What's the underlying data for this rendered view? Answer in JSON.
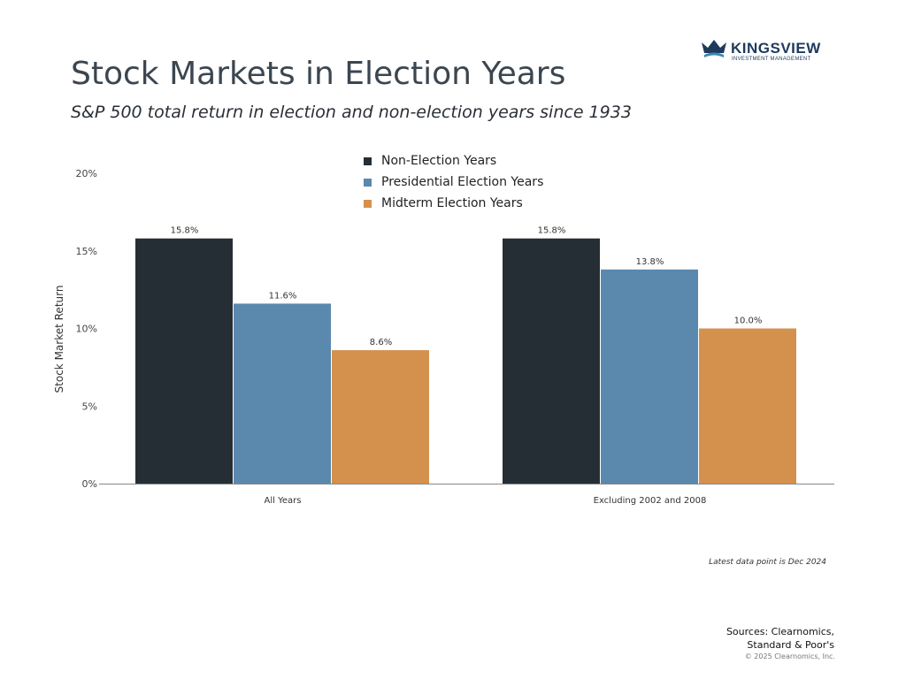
{
  "brand": {
    "name": "KINGSVIEW",
    "tagline": "INVESTMENT MANAGEMENT"
  },
  "header": {
    "title": "Stock Markets in Election Years",
    "subtitle": "S&P 500 total return in election and non-election years since 1933"
  },
  "footer": {
    "note": "Latest data point is Dec 2024",
    "sources_line1": "Sources: Clearnomics,",
    "sources_line2": "Standard & Poor's",
    "copyright": "© 2025 Clearnomics, Inc."
  },
  "chart_data": {
    "type": "bar",
    "title": "Stock Markets in Election Years",
    "subtitle": "S&P 500 total return in election and non-election years since 1933",
    "xlabel": "",
    "ylabel": "Stock Market Return",
    "ylim": [
      0,
      20
    ],
    "yticks": [
      0,
      5,
      10,
      15,
      20
    ],
    "ytick_labels": [
      "0%",
      "5%",
      "10%",
      "15%",
      "20%"
    ],
    "grid": false,
    "legend_position": "top-center",
    "categories": [
      "All Years",
      "Excluding 2002 and 2008"
    ],
    "series": [
      {
        "name": "Non-Election Years",
        "color": "#252e35",
        "values": [
          15.8,
          15.8
        ],
        "labels": [
          "15.8%",
          "15.8%"
        ]
      },
      {
        "name": "Presidential Election Years",
        "color": "#5b88ad",
        "values": [
          11.6,
          13.8
        ],
        "labels": [
          "11.6%",
          "13.8%"
        ]
      },
      {
        "name": "Midterm Election Years",
        "color": "#d4914d",
        "values": [
          8.6,
          10.0
        ],
        "labels": [
          "8.6%",
          "10.0%"
        ]
      }
    ]
  }
}
